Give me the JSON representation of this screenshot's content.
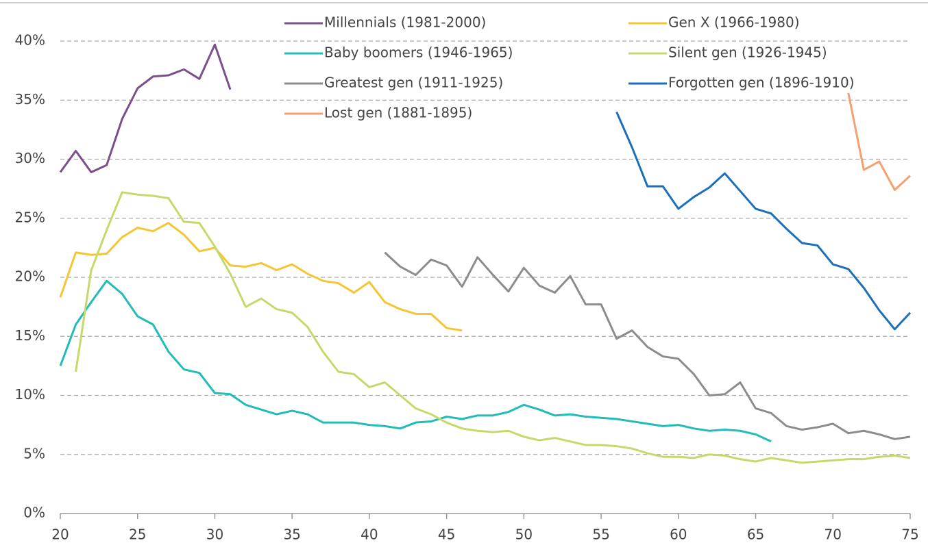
{
  "chart_data": {
    "type": "line",
    "ylim": [
      0,
      40
    ],
    "yticks": [
      {
        "value": 0,
        "label": "0%"
      },
      {
        "value": 5,
        "label": "5%"
      },
      {
        "value": 10,
        "label": "10%"
      },
      {
        "value": 15,
        "label": "15%"
      },
      {
        "value": 20,
        "label": "20%"
      },
      {
        "value": 25,
        "label": "25%"
      },
      {
        "value": 30,
        "label": "30%"
      },
      {
        "value": 35,
        "label": "35%"
      },
      {
        "value": 40,
        "label": "40%"
      }
    ],
    "xlim": [
      20,
      75
    ],
    "xticks": [
      20,
      25,
      30,
      35,
      40,
      45,
      50,
      55,
      60,
      65,
      70,
      75
    ],
    "grid": true,
    "series": [
      {
        "name": "Millennials (1981-2000)",
        "color": "#7b4f8a",
        "x": [
          20,
          21,
          22,
          23,
          24,
          25,
          26,
          27,
          28,
          29,
          30,
          31
        ],
        "values": [
          28.9,
          30.7,
          28.9,
          29.5,
          33.4,
          36.0,
          37.0,
          37.1,
          37.6,
          36.8,
          39.7,
          35.9
        ]
      },
      {
        "name": "Gen X (1966-1980)",
        "color": "#f7c531",
        "x": [
          20,
          21,
          22,
          23,
          24,
          25,
          26,
          27,
          28,
          29,
          30,
          31,
          32,
          33,
          34,
          35,
          36,
          37,
          38,
          39,
          40,
          41,
          42,
          43,
          44,
          45,
          46
        ],
        "values": [
          18.3,
          22.1,
          21.9,
          22.0,
          23.4,
          24.2,
          23.9,
          24.6,
          23.6,
          22.2,
          22.5,
          21.0,
          20.9,
          21.2,
          20.6,
          21.1,
          20.3,
          19.7,
          19.5,
          18.7,
          19.6,
          17.9,
          17.3,
          16.9,
          16.9,
          15.7,
          15.5
        ]
      },
      {
        "name": "Baby boomers (1946-1965)",
        "color": "#1fbcb8",
        "x": [
          20,
          21,
          22,
          23,
          24,
          25,
          26,
          27,
          28,
          29,
          30,
          31,
          32,
          33,
          34,
          35,
          36,
          37,
          38,
          39,
          40,
          41,
          42,
          43,
          44,
          45,
          46,
          47,
          48,
          49,
          50,
          51,
          52,
          53,
          54,
          55,
          56,
          57,
          58,
          59,
          60,
          61,
          62,
          63,
          64,
          65,
          66
        ],
        "values": [
          12.5,
          16.0,
          17.9,
          19.7,
          18.6,
          16.7,
          16.0,
          13.7,
          12.2,
          11.9,
          10.2,
          10.1,
          9.2,
          8.8,
          8.4,
          8.7,
          8.4,
          7.7,
          7.7,
          7.7,
          7.5,
          7.4,
          7.2,
          7.7,
          7.8,
          8.2,
          8.0,
          8.3,
          8.3,
          8.6,
          9.2,
          8.8,
          8.3,
          8.4,
          8.2,
          8.1,
          8.0,
          7.8,
          7.6,
          7.4,
          7.5,
          7.2,
          7.0,
          7.1,
          7.0,
          6.7,
          6.1
        ]
      },
      {
        "name": "Silent gen (1926-1945)",
        "color": "#c5d96a",
        "x": [
          21,
          22,
          23,
          24,
          25,
          26,
          27,
          28,
          29,
          30,
          31,
          32,
          33,
          34,
          35,
          36,
          37,
          38,
          39,
          40,
          41,
          42,
          43,
          44,
          45,
          46,
          47,
          48,
          49,
          50,
          51,
          52,
          53,
          54,
          55,
          56,
          57,
          58,
          59,
          60,
          61,
          62,
          63,
          64,
          65,
          66,
          67,
          68,
          69,
          70,
          71,
          72,
          73,
          74,
          75
        ],
        "values": [
          12.0,
          20.6,
          24.0,
          27.2,
          27.0,
          26.9,
          26.7,
          24.7,
          24.6,
          22.6,
          20.3,
          17.5,
          18.2,
          17.3,
          17.0,
          15.8,
          13.7,
          12.0,
          11.8,
          10.7,
          11.1,
          10.0,
          8.9,
          8.4,
          7.7,
          7.2,
          7.0,
          6.9,
          7.0,
          6.5,
          6.2,
          6.4,
          6.1,
          5.8,
          5.8,
          5.7,
          5.5,
          5.1,
          4.8,
          4.8,
          4.7,
          5.0,
          4.9,
          4.6,
          4.4,
          4.7,
          4.5,
          4.3,
          4.4,
          4.5,
          4.6,
          4.6,
          4.8,
          4.9,
          4.7
        ]
      },
      {
        "name": "Greatest gen (1911-1925)",
        "color": "#8c8c8c",
        "x": [
          41,
          42,
          43,
          44,
          45,
          46,
          47,
          48,
          49,
          50,
          51,
          52,
          53,
          54,
          55,
          56,
          57,
          58,
          59,
          60,
          61,
          62,
          63,
          64,
          65,
          66,
          67,
          68,
          69,
          70,
          71,
          72,
          73,
          74,
          75
        ],
        "values": [
          22.1,
          20.9,
          20.2,
          21.5,
          21.0,
          19.2,
          21.7,
          20.2,
          18.8,
          20.8,
          19.3,
          18.7,
          20.1,
          17.7,
          17.7,
          14.8,
          15.5,
          14.1,
          13.3,
          13.1,
          11.8,
          10.0,
          10.1,
          11.1,
          8.9,
          8.5,
          7.4,
          7.1,
          7.3,
          7.6,
          6.8,
          7.0,
          6.7,
          6.3,
          6.5
        ]
      },
      {
        "name": "Forgotten gen (1896-1910)",
        "color": "#1a6fb8",
        "x": [
          56,
          57,
          58,
          59,
          60,
          61,
          62,
          63,
          64,
          65,
          66,
          67,
          68,
          69,
          70,
          71,
          72,
          73,
          74,
          75
        ],
        "values": [
          34.0,
          31.0,
          27.7,
          27.7,
          25.8,
          26.8,
          27.6,
          28.8,
          27.3,
          25.8,
          25.4,
          24.1,
          22.9,
          22.7,
          21.1,
          20.7,
          19.1,
          17.2,
          15.6,
          17.0
        ]
      },
      {
        "name": "Lost gen (1881-1895)",
        "color": "#f4a072",
        "x": [
          71,
          72,
          73,
          74,
          75
        ],
        "values": [
          35.6,
          29.1,
          29.8,
          27.4,
          28.6
        ]
      }
    ]
  }
}
